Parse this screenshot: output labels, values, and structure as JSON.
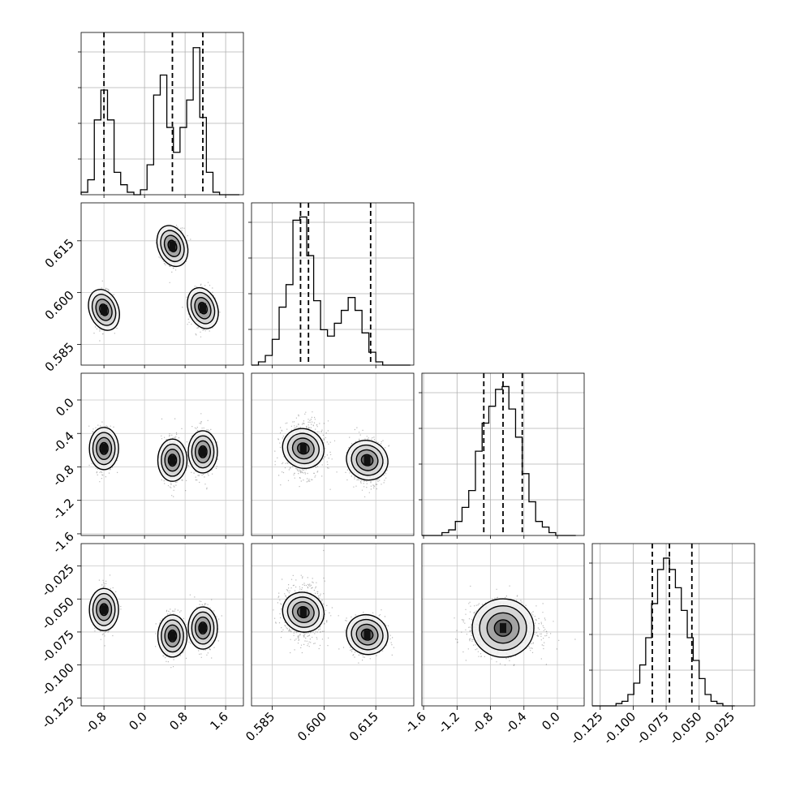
{
  "chart_data": {
    "type": "corner",
    "parameters": [
      {
        "name": "",
        "ticks": [
          "-0.8",
          "0.0",
          "0.8",
          "1.6"
        ],
        "tick_values": [
          -0.8,
          0.0,
          0.8,
          1.6
        ],
        "range": [
          -1.25,
          1.95
        ],
        "quantiles": [
          -0.8,
          0.55,
          1.15
        ]
      },
      {
        "name": "",
        "ticks": [
          "0.585",
          "0.600",
          "0.615"
        ],
        "tick_values": [
          0.585,
          0.6,
          0.615
        ],
        "range": [
          0.579,
          0.626
        ],
        "quantiles": [
          0.5932,
          0.5955,
          0.6135
        ]
      },
      {
        "name": "",
        "ticks": [
          "-1.6",
          "-1.2",
          "-0.8",
          "-0.4",
          "0.0"
        ],
        "tick_values": [
          -1.6,
          -1.2,
          -0.8,
          -0.4,
          0.0
        ],
        "range": [
          -1.62,
          0.32
        ],
        "quantiles": [
          -0.88,
          -0.65,
          -0.42
        ]
      },
      {
        "name": "",
        "ticks": [
          "-0.125",
          "-0.100",
          "-0.075",
          "-0.050",
          "-0.025"
        ],
        "tick_values": [
          -0.125,
          -0.1,
          -0.075,
          -0.05,
          -0.025
        ],
        "range": [
          -0.131,
          -0.008
        ],
        "quantiles": [
          -0.0855,
          -0.0725,
          -0.0555
        ]
      }
    ],
    "histograms": [
      {
        "bins": [
          -1.25,
          -1.12,
          -0.99,
          -0.86,
          -0.73,
          -0.6,
          -0.47,
          -0.34,
          -0.21,
          -0.08,
          0.05,
          0.18,
          0.31,
          0.44,
          0.57,
          0.7,
          0.83,
          0.96,
          1.09,
          1.22,
          1.35,
          1.48,
          1.61,
          1.74,
          1.87
        ],
        "counts": [
          1,
          6,
          30,
          42,
          30,
          9,
          4,
          1,
          0,
          2,
          12,
          40,
          48,
          27,
          17,
          27,
          38,
          59,
          31,
          9,
          1,
          0,
          0,
          0
        ],
        "ymax": 62
      },
      {
        "bins": [
          0.579,
          0.581,
          0.583,
          0.585,
          0.587,
          0.589,
          0.591,
          0.593,
          0.595,
          0.597,
          0.599,
          0.601,
          0.603,
          0.605,
          0.607,
          0.609,
          0.611,
          0.613,
          0.615,
          0.617,
          0.619,
          0.621,
          0.623,
          0.625
        ],
        "counts": [
          0,
          1,
          3,
          8,
          18,
          25,
          45,
          46,
          34,
          20,
          11,
          9,
          13,
          17,
          21,
          17,
          10,
          4,
          1,
          0,
          0,
          0,
          0
        ],
        "ymax": 48
      },
      {
        "bins": [
          -1.62,
          -1.54,
          -1.46,
          -1.38,
          -1.3,
          -1.22,
          -1.14,
          -1.06,
          -0.98,
          -0.9,
          -0.82,
          -0.74,
          -0.66,
          -0.58,
          -0.5,
          -0.42,
          -0.34,
          -0.26,
          -0.18,
          -0.1,
          -0.02,
          0.06,
          0.14,
          0.22
        ],
        "counts": [
          0,
          0,
          0,
          1,
          2,
          5,
          10,
          16,
          30,
          40,
          46,
          52,
          53,
          45,
          35,
          22,
          12,
          5,
          3,
          1,
          0,
          0,
          0
        ],
        "ymax": 55
      },
      {
        "bins": [
          -0.131,
          -0.1265,
          -0.122,
          -0.1175,
          -0.113,
          -0.1085,
          -0.104,
          -0.0995,
          -0.095,
          -0.0905,
          -0.086,
          -0.0815,
          -0.077,
          -0.0725,
          -0.068,
          -0.0635,
          -0.059,
          -0.0545,
          -0.05,
          -0.0455,
          -0.041,
          -0.0365,
          -0.032,
          -0.0275,
          -0.023
        ],
        "counts": [
          0,
          0,
          0,
          0,
          1,
          2,
          5,
          10,
          18,
          30,
          45,
          60,
          65,
          60,
          52,
          42,
          30,
          20,
          12,
          5,
          2,
          1,
          0,
          0
        ],
        "ymax": 68
      }
    ],
    "modes": {
      "p0": [
        -0.8,
        0.55,
        1.15
      ],
      "p1": [
        0.595,
        0.6135,
        0.5955
      ],
      "p2": [
        -0.58,
        -0.72,
        -0.62
      ],
      "p3": [
        -0.058,
        -0.078,
        -0.072
      ]
    },
    "contour_levels": 4,
    "grid": true
  }
}
